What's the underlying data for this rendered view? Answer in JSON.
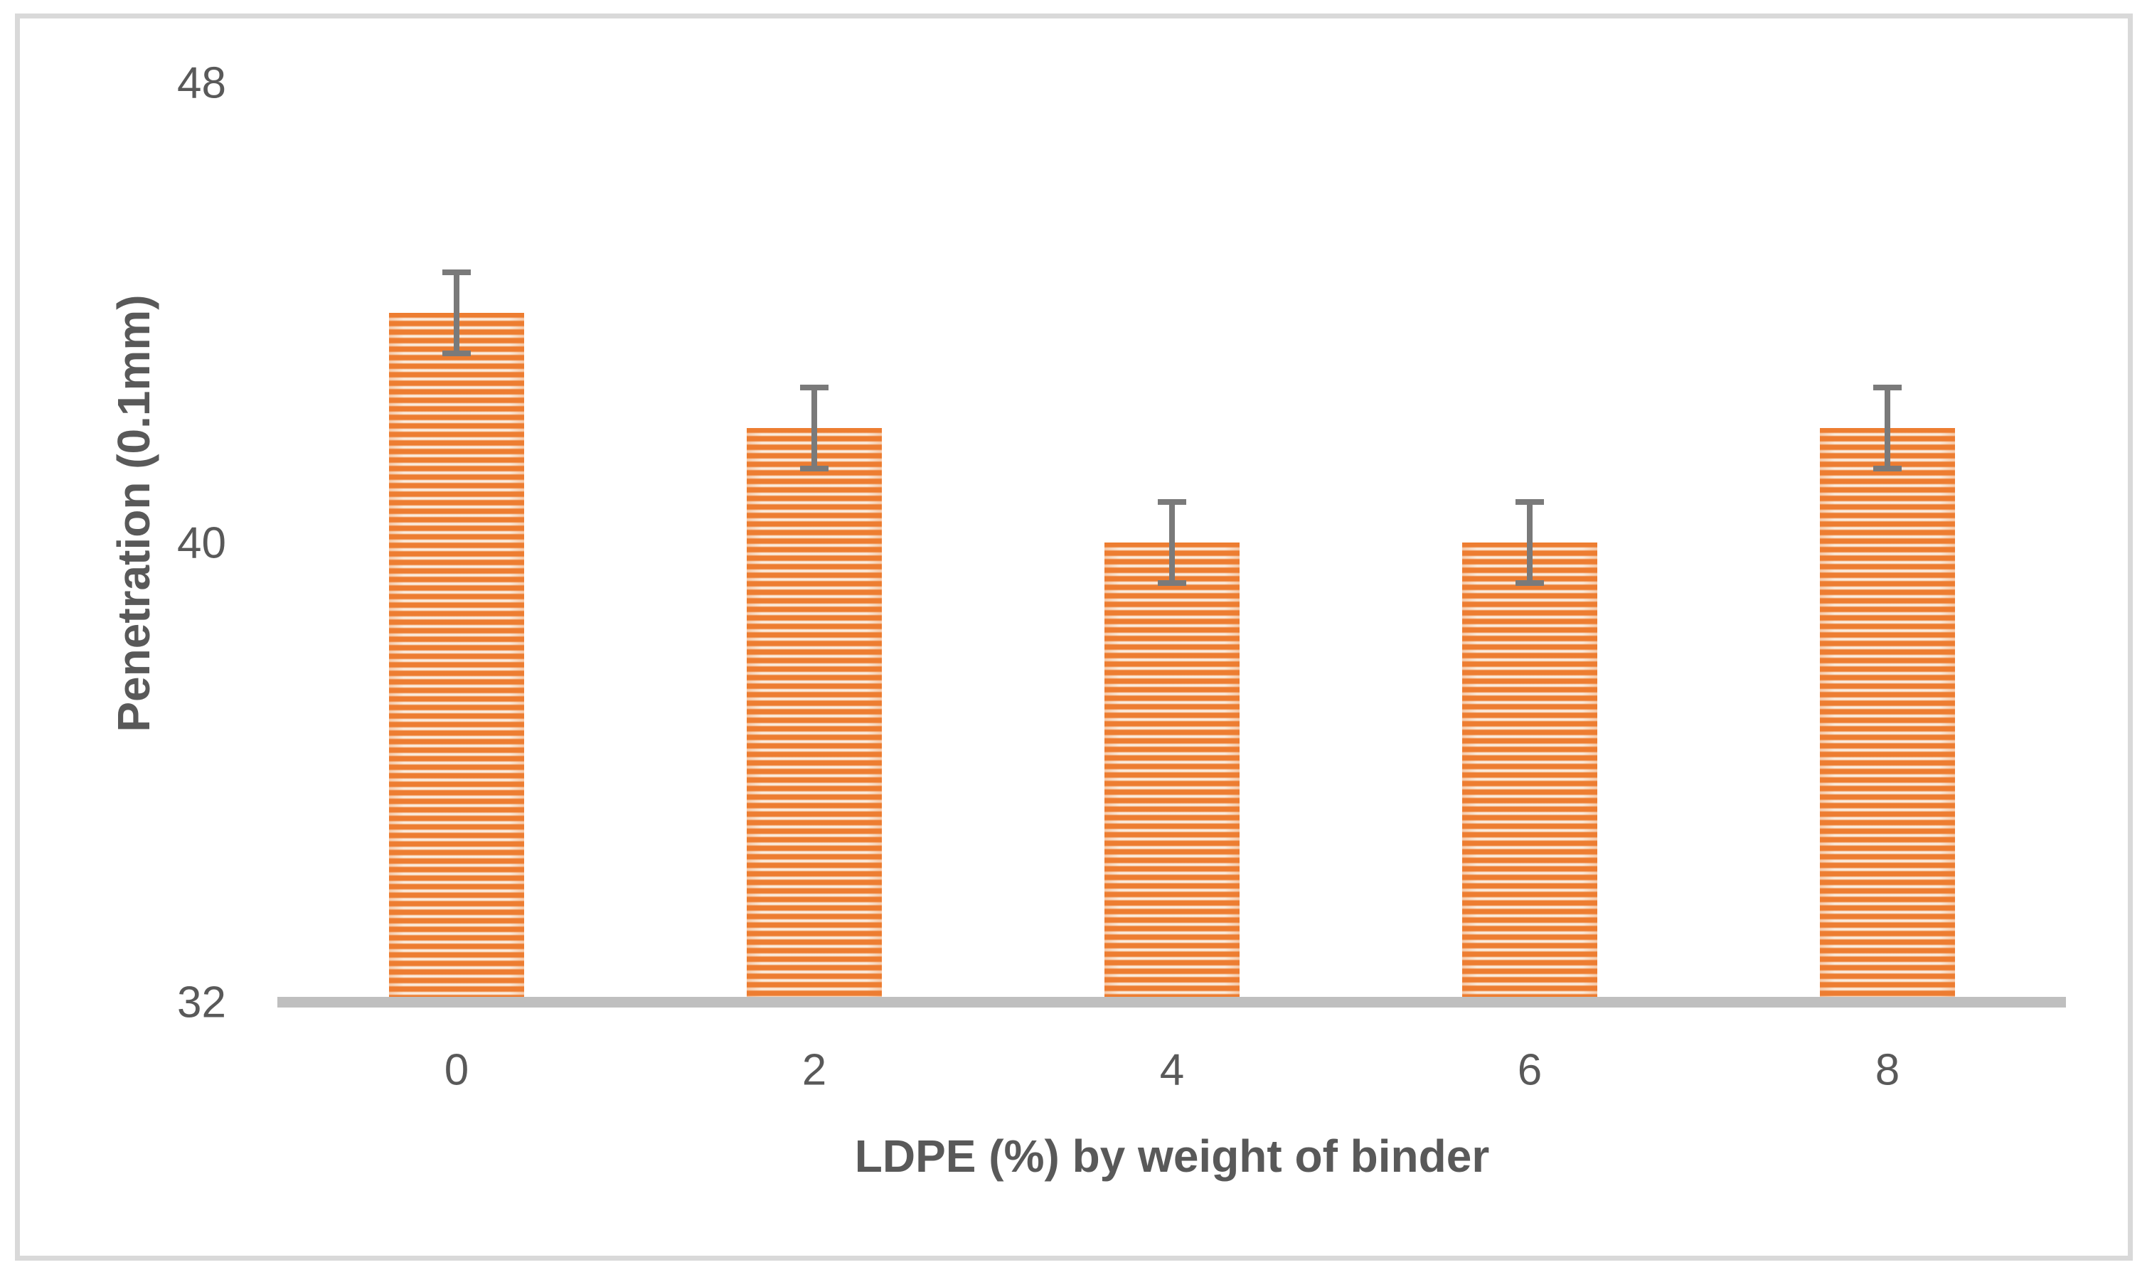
{
  "chart_data": {
    "type": "bar",
    "title": "",
    "xlabel": "LDPE (%) by weight of binder",
    "ylabel": "Penetration (0.1mm)",
    "categories": [
      "0",
      "2",
      "4",
      "6",
      "8"
    ],
    "values": [
      44,
      42,
      40,
      40,
      42
    ],
    "error_bars_plus_minus": [
      0.75,
      0.75,
      0.75,
      0.75,
      0.75
    ],
    "ylim": [
      32,
      48
    ],
    "yticks": [
      32,
      40,
      48
    ],
    "grid": false,
    "legend": "none",
    "bar_fill_pattern": "horizontal-stripes",
    "colors": {
      "bar_stripe_orange": "#ED7D31",
      "bar_stripe_light": "#FDF3EA",
      "bar_stripe_light_edge": "#F8DCC3",
      "error_bar": "#7A7A7A",
      "axis_line": "#BFBFBF",
      "text": "#595959",
      "figure_border": "#D9D9D9",
      "background": "#FFFFFF"
    }
  }
}
